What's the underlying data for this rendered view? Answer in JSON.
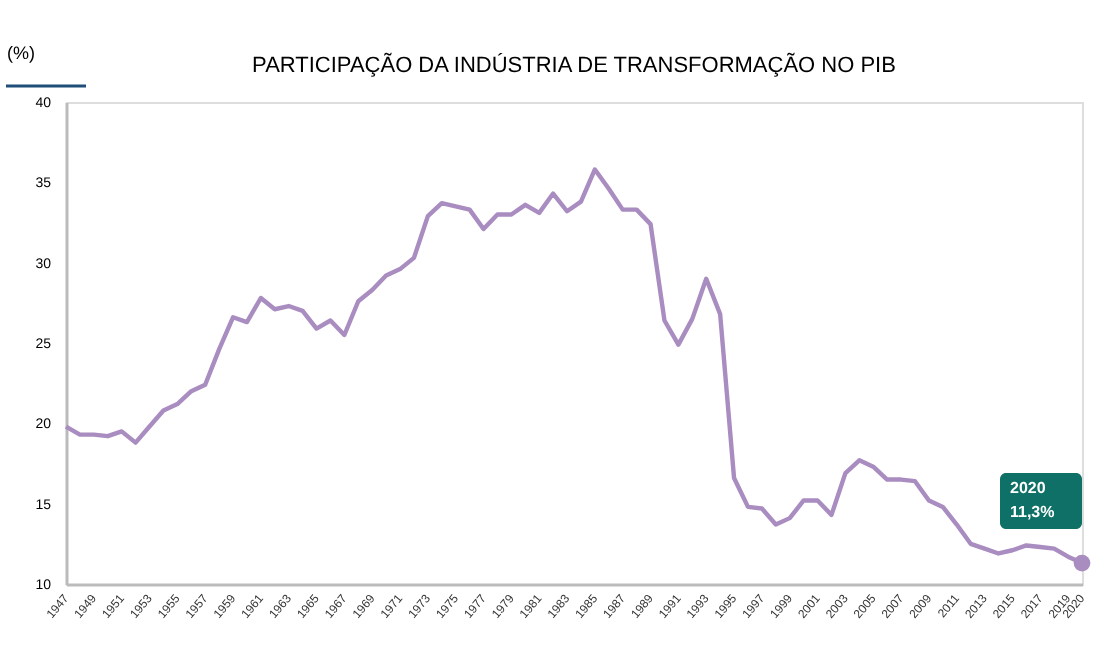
{
  "chart_data": {
    "type": "line",
    "title": "PARTICIPAÇÃO DA INDÚSTRIA DE TRANSFORMAÇÃO NO PIB",
    "ylabel": "(%)",
    "x": [
      1947,
      1948,
      1949,
      1950,
      1951,
      1952,
      1953,
      1954,
      1955,
      1956,
      1957,
      1958,
      1959,
      1960,
      1961,
      1962,
      1963,
      1964,
      1965,
      1966,
      1967,
      1968,
      1969,
      1970,
      1971,
      1972,
      1973,
      1974,
      1975,
      1976,
      1977,
      1978,
      1979,
      1980,
      1981,
      1982,
      1983,
      1984,
      1985,
      1986,
      1987,
      1988,
      1989,
      1990,
      1991,
      1992,
      1993,
      1994,
      1995,
      1996,
      1997,
      1998,
      1999,
      2000,
      2001,
      2002,
      2003,
      2004,
      2005,
      2006,
      2007,
      2008,
      2009,
      2010,
      2011,
      2012,
      2013,
      2014,
      2015,
      2016,
      2017,
      2018,
      2019,
      2020
    ],
    "series": [
      {
        "color": "#a98cc0",
        "values": [
          19.8,
          19.3,
          19.3,
          19.2,
          19.5,
          18.8,
          19.8,
          20.8,
          21.2,
          22.0,
          22.4,
          24.6,
          26.6,
          26.3,
          27.8,
          27.1,
          27.3,
          27.0,
          25.9,
          26.4,
          25.5,
          27.6,
          28.3,
          29.2,
          29.6,
          30.3,
          32.9,
          33.7,
          33.5,
          33.3,
          32.1,
          33.0,
          33.0,
          33.6,
          33.1,
          34.3,
          33.2,
          33.8,
          35.8,
          34.6,
          33.3,
          33.3,
          32.4,
          26.4,
          24.9,
          26.5,
          29.0,
          26.8,
          16.6,
          14.8,
          14.7,
          13.7,
          14.1,
          15.2,
          15.2,
          14.3,
          16.9,
          17.7,
          17.3,
          16.5,
          16.5,
          16.4,
          15.2,
          14.8,
          13.7,
          12.5,
          12.2,
          11.9,
          12.1,
          12.4,
          12.3,
          12.2,
          11.7,
          11.3
        ]
      }
    ],
    "xlim": [
      1947,
      2020
    ],
    "xticks": [
      1947,
      1949,
      1951,
      1953,
      1955,
      1957,
      1959,
      1961,
      1963,
      1965,
      1967,
      1969,
      1971,
      1973,
      1975,
      1977,
      1979,
      1981,
      1983,
      1985,
      1987,
      1989,
      1991,
      1993,
      1995,
      1997,
      1999,
      2001,
      2003,
      2005,
      2007,
      2009,
      2011,
      2013,
      2015,
      2017,
      2019,
      2020
    ],
    "ylim": [
      10,
      40
    ],
    "yticks": [
      10,
      15,
      20,
      25,
      30,
      35,
      40
    ],
    "grid": false,
    "marker": "none",
    "line_style": "solid",
    "annotations": [
      "2020",
      "11,3%"
    ]
  }
}
